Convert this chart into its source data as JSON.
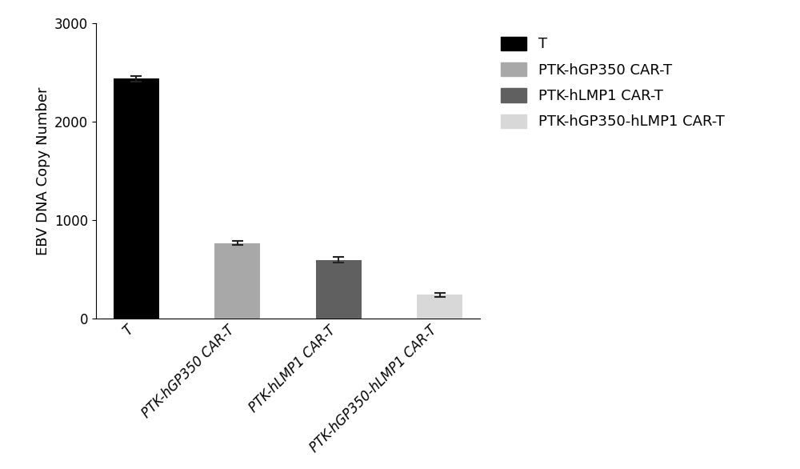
{
  "categories": [
    "T",
    "PTK-hGP350 CAR-T",
    "PTK-hLMP1 CAR-T",
    "PTK-hGP350-hLMP1 CAR-T"
  ],
  "values": [
    2440,
    770,
    600,
    245
  ],
  "errors": [
    28,
    22,
    28,
    18
  ],
  "bar_colors": [
    "#000000",
    "#a8a8a8",
    "#606060",
    "#d8d8d8"
  ],
  "ylabel": "EBV DNA Copy Number",
  "ylim": [
    0,
    3000
  ],
  "yticks": [
    0,
    1000,
    2000,
    3000
  ],
  "legend_labels": [
    "T",
    "PTK-hGP350 CAR-T",
    "PTK-hLMP1 CAR-T",
    "PTK-hGP350-hLMP1 CAR-T"
  ],
  "legend_colors": [
    "#000000",
    "#a8a8a8",
    "#606060",
    "#d8d8d8"
  ],
  "background_color": "#ffffff",
  "bar_width": 0.45,
  "tick_label_rotation": 45,
  "tick_label_ha": "right",
  "tick_label_style": "italic",
  "ylabel_fontsize": 13,
  "tick_fontsize": 12,
  "legend_fontsize": 13,
  "error_capsize": 5,
  "error_color": "#222222",
  "error_linewidth": 1.5
}
